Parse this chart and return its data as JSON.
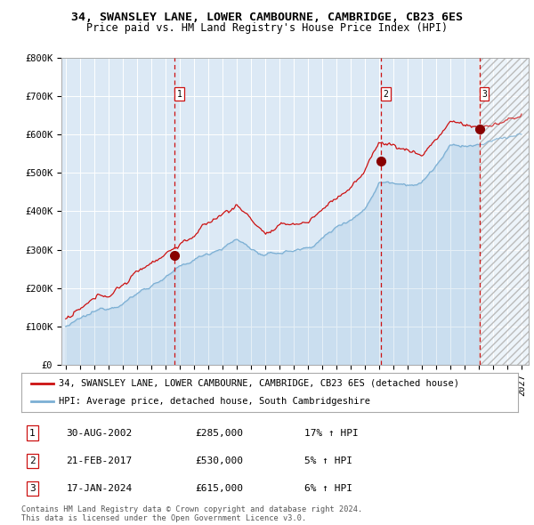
{
  "title": "34, SWANSLEY LANE, LOWER CAMBOURNE, CAMBRIDGE, CB23 6ES",
  "subtitle": "Price paid vs. HM Land Registry's House Price Index (HPI)",
  "ylim": [
    0,
    800000
  ],
  "yticks": [
    0,
    100000,
    200000,
    300000,
    400000,
    500000,
    600000,
    700000,
    800000
  ],
  "ytick_labels": [
    "£0",
    "£100K",
    "£200K",
    "£300K",
    "£400K",
    "£500K",
    "£600K",
    "£700K",
    "£800K"
  ],
  "x_start_year": 1995,
  "x_end_year": 2027,
  "hpi_color": "#7bafd4",
  "price_color": "#cc1111",
  "bg_color": "#dce9f5",
  "vline_color": "#cc1111",
  "marker_color": "#880000",
  "sale1_year": 2002.665,
  "sale1_price": 285000,
  "sale2_year": 2017.13,
  "sale2_price": 530000,
  "sale3_year": 2024.04,
  "sale3_price": 615000,
  "legend_line1": "34, SWANSLEY LANE, LOWER CAMBOURNE, CAMBRIDGE, CB23 6ES (detached house)",
  "legend_line2": "HPI: Average price, detached house, South Cambridgeshire",
  "table_entries": [
    {
      "num": "1",
      "date": "30-AUG-2002",
      "price": "£285,000",
      "change": "17% ↑ HPI"
    },
    {
      "num": "2",
      "date": "21-FEB-2017",
      "price": "£530,000",
      "change": "5% ↑ HPI"
    },
    {
      "num": "3",
      "date": "17-JAN-2024",
      "price": "£615,000",
      "change": "6% ↑ HPI"
    }
  ],
  "footer": "Contains HM Land Registry data © Crown copyright and database right 2024.\nThis data is licensed under the Open Government Licence v3.0.",
  "title_fontsize": 9.5,
  "subtitle_fontsize": 8.5,
  "tick_fontsize": 7.5,
  "legend_fontsize": 7.5,
  "table_fontsize": 8
}
